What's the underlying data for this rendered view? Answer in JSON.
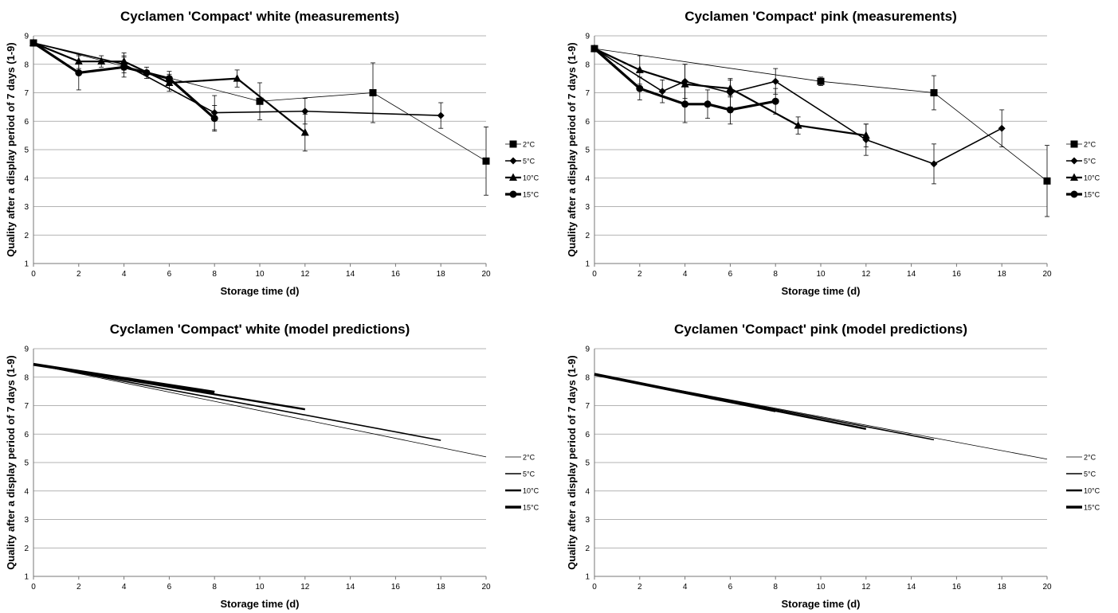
{
  "chart_data": [
    {
      "type": "line",
      "title": "Cyclamen 'Compact' white (measurements)",
      "xlabel": "Storage time (d)",
      "ylabel": "Quality after a display period of 7 days  (1-9)",
      "xlim": [
        0,
        20
      ],
      "ylim": [
        1,
        9
      ],
      "xticks": [
        0,
        2,
        4,
        6,
        8,
        10,
        12,
        14,
        16,
        18,
        20
      ],
      "yticks": [
        1,
        2,
        3,
        4,
        5,
        6,
        7,
        8,
        9
      ],
      "grid": "horizontal",
      "legend_position": "right",
      "series": [
        {
          "name": "2°C",
          "marker": "square",
          "stroke": 0.8,
          "x": [
            0,
            10,
            15,
            20
          ],
          "y": [
            8.75,
            6.7,
            7.0,
            4.6
          ],
          "err": [
            0,
            0.65,
            1.05,
            1.2
          ]
        },
        {
          "name": "5°C",
          "marker": "diamond",
          "stroke": 1.6,
          "x": [
            0,
            4,
            8,
            12,
            18
          ],
          "y": [
            8.75,
            8.0,
            6.3,
            6.35,
            6.2
          ],
          "err": [
            0,
            0.3,
            0.6,
            0.45,
            0.45
          ]
        },
        {
          "name": "10°C",
          "marker": "triangle",
          "stroke": 2.2,
          "x": [
            0,
            2,
            3,
            4,
            6,
            9,
            12
          ],
          "y": [
            8.75,
            8.1,
            8.1,
            8.1,
            7.35,
            7.5,
            5.6
          ],
          "err": [
            0,
            0.25,
            0.2,
            0.3,
            0.3,
            0.3,
            0.65
          ]
        },
        {
          "name": "15°C",
          "marker": "circle",
          "stroke": 3.2,
          "x": [
            0,
            2,
            4,
            5,
            6,
            8
          ],
          "y": [
            8.75,
            7.7,
            7.9,
            7.7,
            7.5,
            6.1
          ],
          "err": [
            0,
            0.6,
            0.35,
            0.2,
            0.25,
            0.45
          ]
        }
      ]
    },
    {
      "type": "line",
      "title": "Cyclamen 'Compact' pink (measurements)",
      "xlabel": "Storage time (d)",
      "ylabel": "Quality after a display period of 7 days  (1-9)",
      "xlim": [
        0,
        20
      ],
      "ylim": [
        1,
        9
      ],
      "xticks": [
        0,
        2,
        4,
        6,
        8,
        10,
        12,
        14,
        16,
        18,
        20
      ],
      "yticks": [
        1,
        2,
        3,
        4,
        5,
        6,
        7,
        8,
        9
      ],
      "grid": "horizontal",
      "legend_position": "right",
      "series": [
        {
          "name": "2°C",
          "marker": "square",
          "stroke": 0.8,
          "x": [
            0,
            10,
            15,
            20
          ],
          "y": [
            8.55,
            7.4,
            7.0,
            3.9
          ],
          "err": [
            0,
            0.15,
            0.6,
            1.25
          ]
        },
        {
          "name": "5°C",
          "marker": "diamond",
          "stroke": 1.6,
          "x": [
            0,
            3,
            4,
            6,
            8,
            12,
            15,
            18
          ],
          "y": [
            8.55,
            7.05,
            7.4,
            7.0,
            7.4,
            5.35,
            4.5,
            5.75
          ],
          "err": [
            0,
            0.4,
            0.6,
            0.5,
            0.45,
            0.55,
            0.7,
            0.65
          ]
        },
        {
          "name": "10°C",
          "marker": "triangle",
          "stroke": 2.2,
          "x": [
            0,
            2,
            4,
            6,
            9,
            12
          ],
          "y": [
            8.55,
            7.8,
            7.3,
            7.15,
            5.85,
            5.5
          ],
          "err": [
            0,
            0.5,
            0.7,
            0.3,
            0.3,
            0.4
          ]
        },
        {
          "name": "15°C",
          "marker": "circle",
          "stroke": 3.2,
          "x": [
            0,
            2,
            4,
            5,
            6,
            8
          ],
          "y": [
            8.55,
            7.15,
            6.6,
            6.6,
            6.4,
            6.7
          ],
          "err": [
            0,
            0.4,
            0.65,
            0.5,
            0.5,
            0.45
          ]
        }
      ]
    },
    {
      "type": "line",
      "title": "Cyclamen 'Compact' white (model predictions)",
      "xlabel": "Storage time (d)",
      "ylabel": "Quality after a display period of 7 days  (1-9)",
      "xlim": [
        0,
        20
      ],
      "ylim": [
        1,
        9
      ],
      "xticks": [
        0,
        2,
        4,
        6,
        8,
        10,
        12,
        14,
        16,
        18,
        20
      ],
      "yticks": [
        1,
        2,
        3,
        4,
        5,
        6,
        7,
        8,
        9
      ],
      "grid": "horizontal",
      "legend_position": "right",
      "series": [
        {
          "name": "2°C",
          "marker": "none",
          "stroke": 0.8,
          "x": [
            0,
            20
          ],
          "y": [
            8.45,
            5.2
          ]
        },
        {
          "name": "5°C",
          "marker": "none",
          "stroke": 1.6,
          "x": [
            0,
            18
          ],
          "y": [
            8.45,
            5.78
          ]
        },
        {
          "name": "10°C",
          "marker": "none",
          "stroke": 2.4,
          "x": [
            0,
            12
          ],
          "y": [
            8.45,
            6.87
          ]
        },
        {
          "name": "15°C",
          "marker": "none",
          "stroke": 3.6,
          "x": [
            0,
            8
          ],
          "y": [
            8.45,
            7.47
          ]
        }
      ]
    },
    {
      "type": "line",
      "title": "Cyclamen 'Compact' pink (model predictions)",
      "xlabel": "Storage time (d)",
      "ylabel": "Quality after a display period of 7 days  (1-9)",
      "xlim": [
        0,
        20
      ],
      "ylim": [
        1,
        9
      ],
      "xticks": [
        0,
        2,
        4,
        6,
        8,
        10,
        12,
        14,
        16,
        18,
        20
      ],
      "yticks": [
        1,
        2,
        3,
        4,
        5,
        6,
        7,
        8,
        9
      ],
      "grid": "horizontal",
      "legend_position": "right",
      "series": [
        {
          "name": "2°C",
          "marker": "none",
          "stroke": 0.8,
          "x": [
            0,
            20
          ],
          "y": [
            8.1,
            5.12
          ]
        },
        {
          "name": "5°C",
          "marker": "none",
          "stroke": 1.6,
          "x": [
            0,
            15
          ],
          "y": [
            8.1,
            5.8
          ]
        },
        {
          "name": "10°C",
          "marker": "none",
          "stroke": 2.4,
          "x": [
            0,
            12
          ],
          "y": [
            8.1,
            6.18
          ]
        },
        {
          "name": "15°C",
          "marker": "none",
          "stroke": 3.6,
          "x": [
            0,
            8
          ],
          "y": [
            8.1,
            6.82
          ]
        }
      ]
    }
  ]
}
